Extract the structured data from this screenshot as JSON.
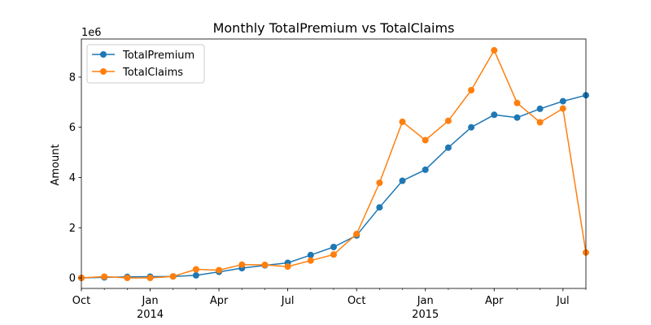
{
  "chart_data": {
    "type": "line",
    "title": "Monthly TotalPremium vs TotalClaims",
    "xlabel": "",
    "ylabel": "Amount",
    "y_scale_label": "1e6",
    "y_scale": 1000000,
    "x": [
      "2013-10",
      "2013-11",
      "2013-12",
      "2014-01",
      "2014-02",
      "2014-03",
      "2014-04",
      "2014-05",
      "2014-06",
      "2014-07",
      "2014-08",
      "2014-09",
      "2014-10",
      "2014-11",
      "2014-12",
      "2015-01",
      "2015-02",
      "2015-03",
      "2015-04",
      "2015-05",
      "2015-06",
      "2015-07",
      "2015-08"
    ],
    "xlim": [
      0,
      22
    ],
    "ylim": [
      -0.42,
      9.52
    ],
    "y_ticks": [
      0,
      2,
      4,
      6,
      8
    ],
    "x_major_ticks": [
      {
        "index": 0,
        "label": "Oct",
        "sublabel": ""
      },
      {
        "index": 3,
        "label": "Jan",
        "sublabel": "2014"
      },
      {
        "index": 6,
        "label": "Apr",
        "sublabel": ""
      },
      {
        "index": 9,
        "label": "Jul",
        "sublabel": ""
      },
      {
        "index": 12,
        "label": "Oct",
        "sublabel": ""
      },
      {
        "index": 15,
        "label": "Jan",
        "sublabel": "2015"
      },
      {
        "index": 18,
        "label": "Apr",
        "sublabel": ""
      },
      {
        "index": 21,
        "label": "Jul",
        "sublabel": ""
      }
    ],
    "legend_position": "top-left",
    "grid": false,
    "series": [
      {
        "name": "TotalPremium",
        "color": "#1f77b4",
        "values": [
          0.0,
          0.02,
          0.04,
          0.05,
          0.06,
          0.1,
          0.24,
          0.39,
          0.5,
          0.6,
          0.91,
          1.23,
          1.69,
          2.81,
          3.87,
          4.31,
          5.19,
          6.0,
          6.5,
          6.39,
          6.74,
          7.04,
          7.28
        ]
      },
      {
        "name": "TotalClaims",
        "color": "#ff7f0e",
        "values": [
          0.0,
          0.05,
          0.0,
          0.0,
          0.06,
          0.34,
          0.31,
          0.53,
          0.52,
          0.45,
          0.69,
          0.93,
          1.75,
          3.79,
          6.22,
          5.49,
          6.26,
          7.48,
          9.07,
          6.97,
          6.2,
          6.75,
          1.01
        ]
      }
    ]
  }
}
